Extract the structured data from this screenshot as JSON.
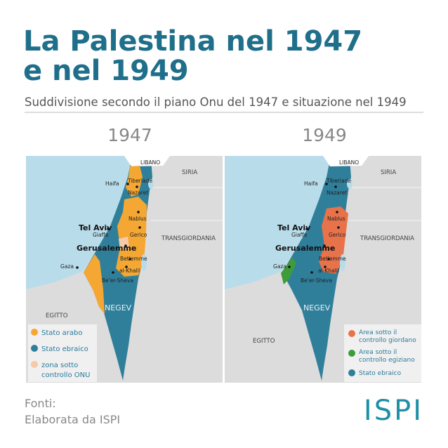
{
  "header": {
    "title_line1": "La Palestina nel 1947",
    "title_line2": "e nel 1949",
    "subtitle": "Suddivisione secondo il piano Onu del 1947 e situazione nel 1949"
  },
  "maps": [
    {
      "year": "1947",
      "places": [
        "LIBANO",
        "SIRIA",
        "Haifa",
        "Tiberiade",
        "Nazaret",
        "Nablus",
        "Tel Aviv",
        "Giaffa",
        "Gerico",
        "TRANSGIORDANIA",
        "Gerusalemme",
        "Betlemme",
        "Gaza",
        "al-Khalil",
        "Be'er-Sheva",
        "EGITTO",
        "NEGEV"
      ],
      "legend": [
        {
          "label_lines": [
            "Stato arabo"
          ]
        },
        {
          "label_lines": [
            "Stato ebraico"
          ]
        },
        {
          "label_lines": [
            "zona sotto",
            "controllo ONU"
          ]
        }
      ]
    },
    {
      "year": "1949",
      "places": [
        "LIBANO",
        "SIRIA",
        "Haifa",
        "Tiberiade",
        "Nazaret",
        "Nablus",
        "Tel Aviv",
        "Giaffa",
        "Gerico",
        "TRANSGIORDANIA",
        "Gerusalemme",
        "Betlemme",
        "Gaza",
        "al-Khalil",
        "Be'er-Sheva",
        "EGITTO",
        "NEGEV"
      ],
      "legend": [
        {
          "label_lines": [
            "Area sotto il",
            "controllo giordano"
          ]
        },
        {
          "label_lines": [
            "Area sotto il",
            "controllo egiziano"
          ]
        },
        {
          "label_lines": [
            "Stato ebraico"
          ]
        }
      ]
    }
  ],
  "footer": {
    "sources_label": "Fonti:",
    "sources": "Elaborata da ISPI",
    "logo": "ISPI"
  }
}
